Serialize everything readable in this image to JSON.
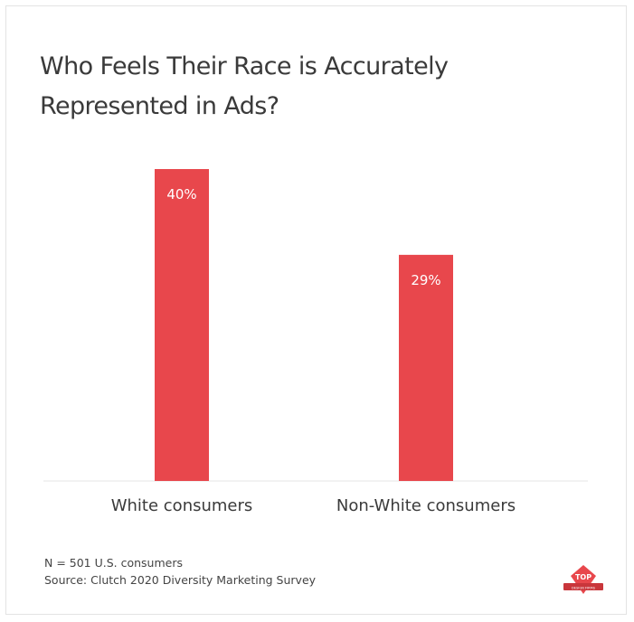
{
  "chart_data": {
    "type": "bar",
    "title": "Who Feels Their Race is Accurately Represented in Ads?",
    "categories": [
      "White consumers",
      "Non-White consumers"
    ],
    "values": [
      40,
      29
    ],
    "value_labels": [
      "40%",
      "29%"
    ],
    "ylim": [
      0,
      40
    ],
    "grid": false,
    "bar_color": "#e8474c"
  },
  "notes": {
    "sample": "N = 501 U.S. consumers",
    "source": "Source: Clutch 2020 Diversity Marketing Survey"
  },
  "logo": {
    "text_main": "TOP",
    "text_sub": "DESIGN FIRMS",
    "color": "#e8474c"
  }
}
